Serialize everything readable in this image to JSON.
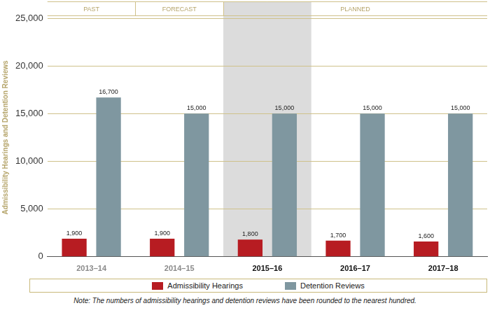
{
  "chart_data": {
    "type": "bar",
    "y_label": "Admissibility Hearings and Detention Reviews",
    "categories": [
      "2013–14",
      "2014–15",
      "2015–16",
      "2016–17",
      "2017–18"
    ],
    "series": [
      {
        "name": "Admissibility Hearings",
        "color": "#b71c22",
        "values": [
          1900,
          1900,
          1800,
          1700,
          1600
        ],
        "value_labels": [
          "1,900",
          "1,900",
          "1,800",
          "1,700",
          "1,600"
        ]
      },
      {
        "name": "Detention Reviews",
        "color": "#7f97a0",
        "values": [
          16700,
          15000,
          15000,
          15000,
          15000
        ],
        "value_labels": [
          "16,700",
          "15,000",
          "15,000",
          "15,000",
          "15,000"
        ]
      }
    ],
    "ylim": [
      0,
      25000
    ],
    "yticks": [
      0,
      {
        "value": 5000,
        "label": "5,000"
      },
      {
        "value": 10000,
        "label": "10,000"
      },
      {
        "value": 15000,
        "label": "15,000"
      },
      {
        "value": 20000,
        "label": "20,000"
      },
      {
        "value": 25000,
        "label": "25,000"
      }
    ],
    "grid": true,
    "legend": "bottom",
    "data_labels": true,
    "annotations": [
      {
        "text": "PAST",
        "categories": [
          "2013–14"
        ]
      },
      {
        "text": "FORECAST",
        "categories": [
          "2014–15"
        ]
      },
      {
        "text": "PLANNED",
        "categories": [
          "2015–16",
          "2016–17",
          "2017–18"
        ]
      }
    ],
    "highlight_categories": [
      "2015–16"
    ],
    "note": "Note: The numbers of admissibility hearings and detention reviews have been rounded to the nearest hundred."
  }
}
